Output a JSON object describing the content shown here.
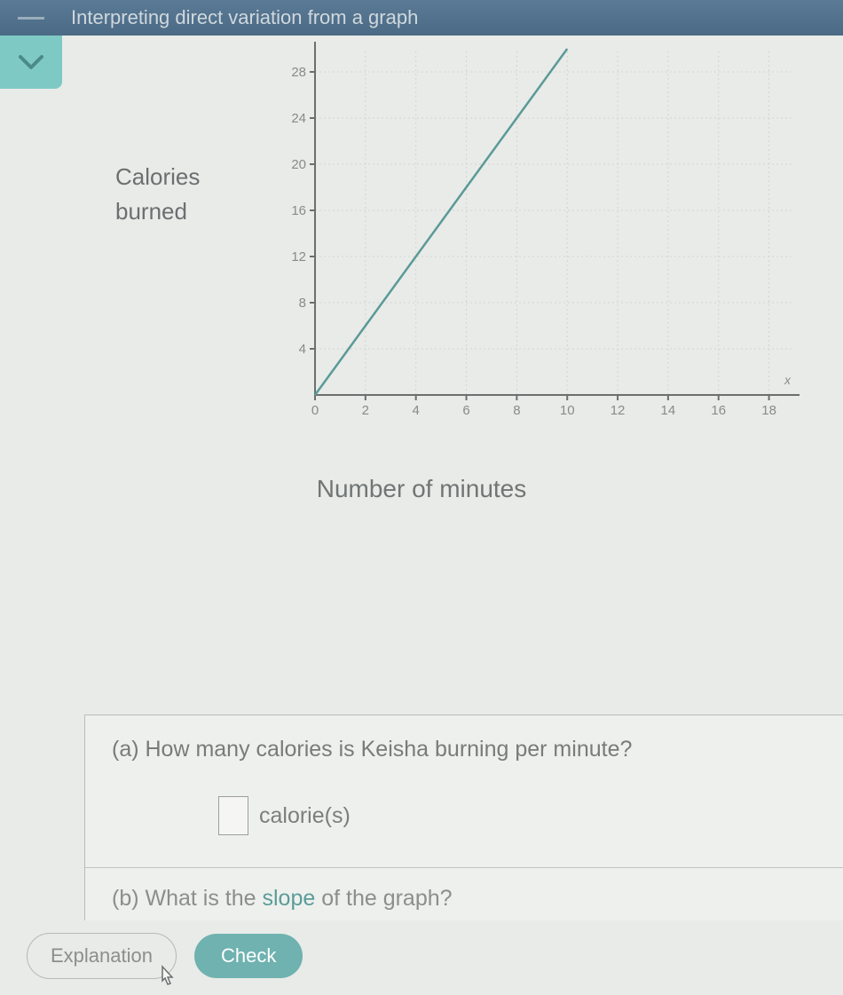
{
  "header": {
    "title": "Interpreting direct variation from a graph"
  },
  "chart": {
    "type": "line",
    "y_axis_label_line1": "Calories",
    "y_axis_label_line2": "burned",
    "x_axis_label": "Number of minutes",
    "xlim": [
      0,
      19
    ],
    "ylim": [
      0,
      30
    ],
    "xticks": [
      0,
      2,
      4,
      6,
      8,
      10,
      12,
      14,
      16,
      18
    ],
    "yticks": [
      4,
      8,
      12,
      16,
      20,
      24,
      28
    ],
    "line_points": [
      [
        0,
        0
      ],
      [
        10,
        30
      ]
    ],
    "line_color": "#5a9a97",
    "line_width": 2.5,
    "axis_color": "#6b6f70",
    "grid_color": "#d2d5d0",
    "tick_label_color": "#888c88",
    "tick_fontsize": 15,
    "background_color": "#e8ebe8",
    "label_fontsize": 26,
    "label_color": "#6a6f70",
    "var_x_label": "x"
  },
  "questions": {
    "a": {
      "prompt": "(a) How many calories is Keisha burning per minute?",
      "unit": "calorie(s)",
      "value": ""
    },
    "b": {
      "prefix": "(b) What is the ",
      "link": "slope",
      "suffix": " of the graph?"
    }
  },
  "buttons": {
    "explanation": "Explanation",
    "check": "Check"
  }
}
